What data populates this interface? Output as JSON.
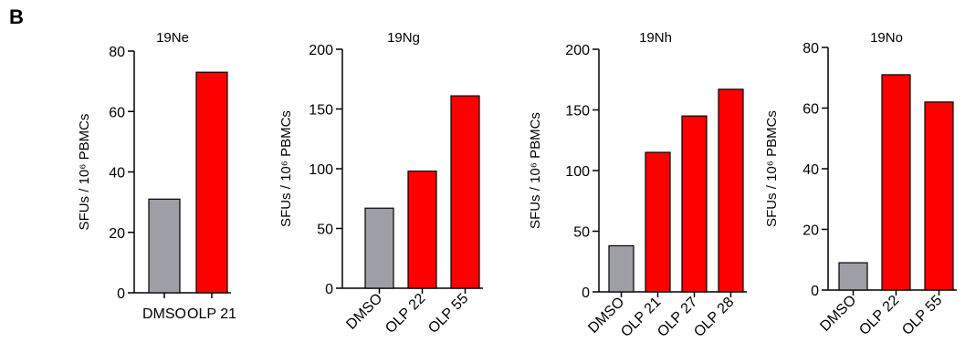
{
  "panel_label": "B",
  "colors": {
    "control": "#9e9ea6",
    "peptide": "#ff0000",
    "outline": "#000000"
  },
  "chart_data": [
    {
      "type": "bar",
      "title": "19Ne",
      "ylabel": "SFUs / 10⁶ PBMCs",
      "ylim": [
        0,
        80
      ],
      "yticks": [
        0,
        20,
        40,
        60,
        80
      ],
      "categories": [
        "DMSO",
        "OLP 21"
      ],
      "values": [
        31,
        73
      ],
      "colors": [
        "#9e9ea6",
        "#ff0000"
      ],
      "label_rotation": 0
    },
    {
      "type": "bar",
      "title": "19Ng",
      "ylabel": "SFUs / 10⁶ PBMCs",
      "ylim": [
        0,
        200
      ],
      "yticks": [
        0,
        50,
        100,
        150,
        200
      ],
      "categories": [
        "DMSO",
        "OLP 22",
        "OLP 55"
      ],
      "values": [
        67,
        98,
        161
      ],
      "colors": [
        "#9e9ea6",
        "#ff0000",
        "#ff0000"
      ],
      "label_rotation": -45
    },
    {
      "type": "bar",
      "title": "19Nh",
      "ylabel": "SFUs / 10⁶ PBMCs",
      "ylim": [
        0,
        200
      ],
      "yticks": [
        0,
        50,
        100,
        150,
        200
      ],
      "categories": [
        "DMSO",
        "OLP 21",
        "OLP 27",
        "OLP 28"
      ],
      "values": [
        38,
        115,
        145,
        167
      ],
      "colors": [
        "#9e9ea6",
        "#ff0000",
        "#ff0000",
        "#ff0000"
      ],
      "label_rotation": -45
    },
    {
      "type": "bar",
      "title": "19No",
      "ylabel": "SFUs / 10⁶ PBMCs",
      "ylim": [
        0,
        80
      ],
      "yticks": [
        0,
        20,
        40,
        60,
        80
      ],
      "categories": [
        "DMSO",
        "OLP 22",
        "OLP 55"
      ],
      "values": [
        9,
        71,
        62
      ],
      "colors": [
        "#9e9ea6",
        "#ff0000",
        "#ff0000"
      ],
      "label_rotation": -45
    }
  ]
}
